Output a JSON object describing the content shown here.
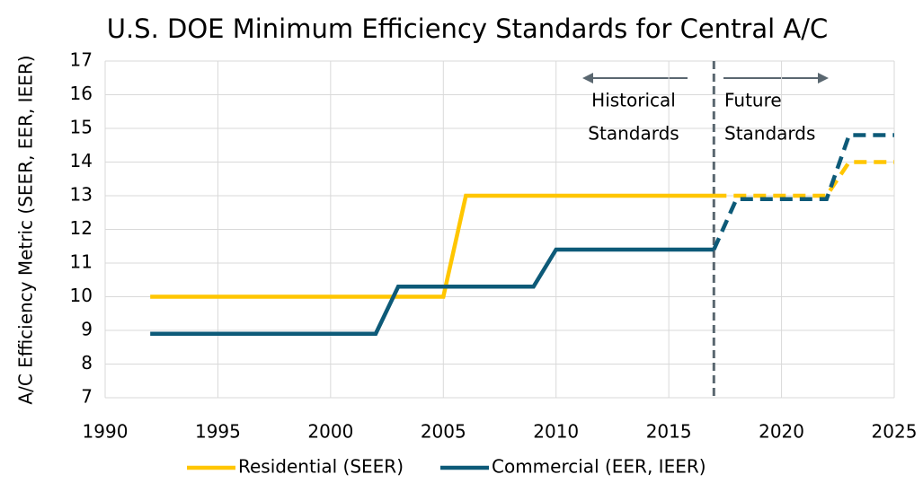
{
  "chart_data": {
    "type": "line",
    "title": "U.S. DOE Minimum Efficiency Standards for Central A/C",
    "y_label": "A/C Efficiency Metric (SEER, EER, IEER)",
    "xlim": [
      1990,
      2025
    ],
    "xticks": [
      1990,
      1995,
      2000,
      2005,
      2010,
      2015,
      2020,
      2025
    ],
    "ylim": [
      7,
      17
    ],
    "yticks": [
      7,
      8,
      9,
      10,
      11,
      12,
      13,
      14,
      15,
      16,
      17
    ],
    "grid": true,
    "divider_x": 2017,
    "annotations": [
      {
        "lines": [
          "Historical",
          "Standards"
        ]
      },
      {
        "lines": [
          "Future",
          "Standards"
        ]
      }
    ],
    "legend": "bottom",
    "series": [
      {
        "name": "Residential (SEER)",
        "color": "#ffc600",
        "x": [
          1992,
          2005,
          2006,
          2017,
          2022,
          2023,
          2025
        ],
        "values": [
          10,
          10,
          13,
          13,
          13,
          14,
          14
        ]
      },
      {
        "name": "Commercial (EER, IEER)",
        "color": "#0d5a78",
        "x": [
          1992,
          2002,
          2003,
          2009,
          2010,
          2017,
          2018,
          2022,
          2023,
          2025
        ],
        "values": [
          8.9,
          8.9,
          10.3,
          10.3,
          11.4,
          11.4,
          12.9,
          12.9,
          14.8,
          14.8
        ]
      }
    ]
  }
}
